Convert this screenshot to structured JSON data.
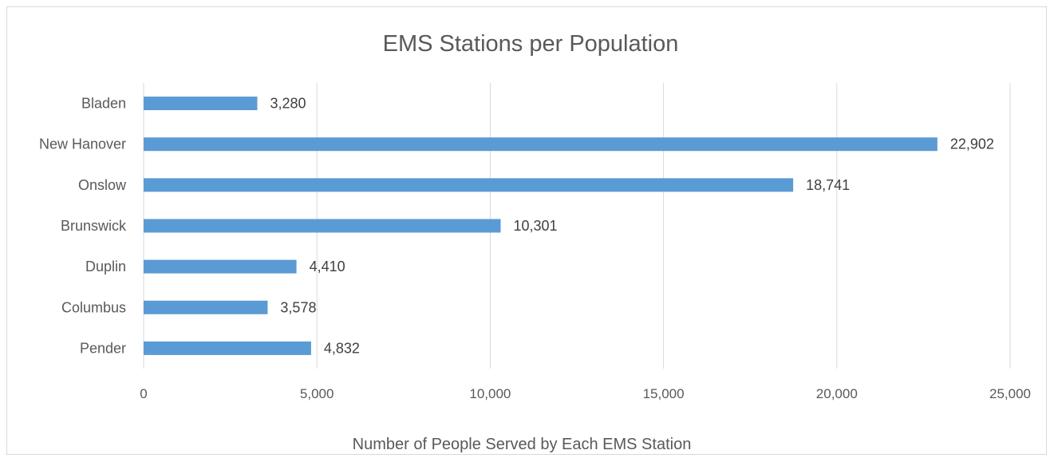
{
  "chart_data": {
    "type": "bar",
    "orientation": "horizontal",
    "title": "EMS Stations per Population",
    "xlabel": "Number of People Served by Each EMS Station",
    "ylabel": "",
    "categories": [
      "Bladen",
      "New Hanover",
      "Onslow",
      "Brunswick",
      "Duplin",
      "Columbus",
      "Pender"
    ],
    "values": [
      3280,
      22902,
      18741,
      10301,
      4410,
      3578,
      4832
    ],
    "value_labels": [
      "3,280",
      "22,902",
      "18,741",
      "10,301",
      "4,410",
      "3,578",
      "4,832"
    ],
    "xlim": [
      0,
      25000
    ],
    "ticks": [
      0,
      5000,
      10000,
      15000,
      20000,
      25000
    ],
    "tick_labels": [
      "0",
      "5,000",
      "10,000",
      "15,000",
      "20,000",
      "25,000"
    ],
    "grid": "vertical",
    "legend": "none",
    "bar_color": "#5b9bd5"
  }
}
